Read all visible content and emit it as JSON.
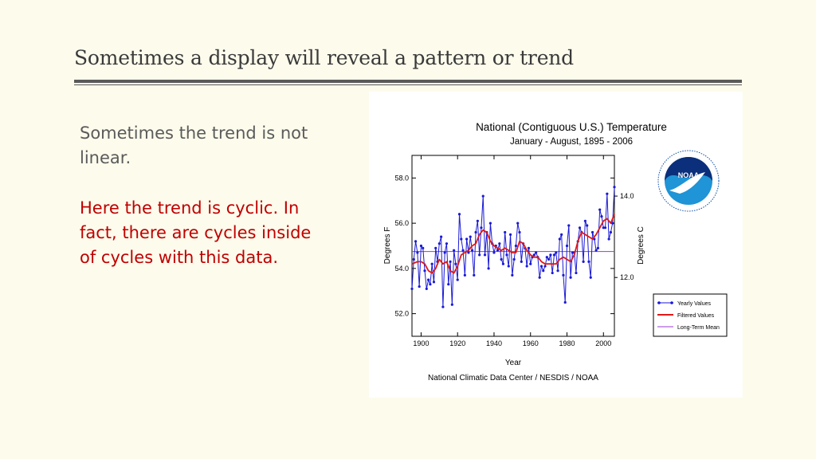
{
  "slide": {
    "title": "Sometimes a display will reveal a pattern or trend",
    "paragraph1": "Sometimes the trend is not linear.",
    "paragraph2": "Here the trend is cyclic. In fact, there are cycles inside of cycles with this data."
  },
  "chart_data": {
    "type": "line",
    "title": "National (Contiguous U.S.) Temperature",
    "subtitle": "January - August, 1895 - 2006",
    "xlabel": "Year",
    "ylabel": "Degrees F",
    "ylabel_right": "Degrees C",
    "source": "National Climatic Data Center / NESDIS / NOAA",
    "logo_text": "NOAA",
    "xlim": [
      1895,
      2006
    ],
    "ylim": [
      51.0,
      59.0
    ],
    "x_ticks": [
      "1900",
      "1920",
      "1940",
      "1960",
      "1980",
      "2000"
    ],
    "y_ticks": [
      "52.0",
      "54.0",
      "56.0",
      "58.0"
    ],
    "y_ticks_right": [
      "12.0",
      "14.0"
    ],
    "grid": false,
    "legend_position": "bottom-right",
    "colors": {
      "yearly": "#1a1ad6",
      "filtered": "#e01818",
      "mean": "#9a3ad6"
    },
    "series": [
      {
        "name": "Yearly Values",
        "x": [
          1895,
          1896,
          1897,
          1898,
          1899,
          1900,
          1901,
          1902,
          1903,
          1904,
          1905,
          1906,
          1907,
          1908,
          1909,
          1910,
          1911,
          1912,
          1913,
          1914,
          1915,
          1916,
          1917,
          1918,
          1919,
          1920,
          1921,
          1922,
          1923,
          1924,
          1925,
          1926,
          1927,
          1928,
          1929,
          1930,
          1931,
          1932,
          1933,
          1934,
          1935,
          1936,
          1937,
          1938,
          1939,
          1940,
          1941,
          1942,
          1943,
          1944,
          1945,
          1946,
          1947,
          1948,
          1949,
          1950,
          1951,
          1952,
          1953,
          1954,
          1955,
          1956,
          1957,
          1958,
          1959,
          1960,
          1961,
          1962,
          1963,
          1964,
          1965,
          1966,
          1967,
          1968,
          1969,
          1970,
          1971,
          1972,
          1973,
          1974,
          1975,
          1976,
          1977,
          1978,
          1979,
          1980,
          1981,
          1982,
          1983,
          1984,
          1985,
          1986,
          1987,
          1988,
          1989,
          1990,
          1991,
          1992,
          1993,
          1994,
          1995,
          1996,
          1997,
          1998,
          1999,
          2000,
          2001,
          2002,
          2003,
          2004,
          2005,
          2006
        ],
        "values": [
          53.1,
          54.4,
          55.2,
          54.7,
          53.2,
          55.0,
          54.9,
          53.9,
          53.1,
          53.5,
          53.3,
          54.2,
          53.4,
          54.9,
          54.3,
          55.1,
          55.4,
          52.3,
          54.7,
          55.1,
          53.3,
          54.3,
          52.4,
          54.8,
          54.2,
          53.5,
          56.4,
          55.3,
          54.8,
          53.7,
          55.3,
          54.7,
          55.4,
          54.8,
          53.7,
          55.6,
          56.1,
          54.6,
          55.8,
          57.2,
          54.6,
          55.6,
          54.0,
          56.0,
          55.1,
          54.7,
          55.0,
          54.8,
          55.1,
          54.4,
          54.2,
          55.6,
          54.6,
          54.1,
          55.5,
          53.7,
          54.4,
          55.0,
          56.0,
          55.6,
          54.3,
          55.1,
          54.9,
          54.1,
          54.9,
          54.2,
          54.5,
          54.6,
          54.7,
          54.5,
          53.6,
          54.1,
          53.9,
          54.1,
          54.5,
          54.4,
          54.6,
          53.8,
          54.6,
          54.7,
          53.9,
          55.3,
          55.5,
          53.7,
          52.5,
          55.0,
          55.9,
          53.6,
          54.7,
          54.7,
          53.8,
          55.2,
          55.8,
          55.6,
          54.3,
          56.1,
          55.9,
          54.3,
          53.6,
          55.6,
          55.3,
          54.8,
          54.9,
          56.6,
          56.3,
          55.8,
          55.8,
          57.3,
          55.3,
          55.6,
          56.0,
          57.6
        ]
      },
      {
        "name": "Filtered Values",
        "x": [
          1895,
          1898,
          1900,
          1902,
          1904,
          1906,
          1908,
          1910,
          1912,
          1914,
          1916,
          1918,
          1920,
          1922,
          1924,
          1926,
          1928,
          1930,
          1932,
          1934,
          1936,
          1938,
          1940,
          1942,
          1944,
          1946,
          1948,
          1950,
          1952,
          1954,
          1956,
          1958,
          1960,
          1962,
          1964,
          1966,
          1968,
          1970,
          1972,
          1974,
          1976,
          1978,
          1980,
          1982,
          1984,
          1986,
          1988,
          1990,
          1992,
          1994,
          1996,
          1998,
          2000,
          2002,
          2004,
          2006
        ],
        "values": [
          54.2,
          54.3,
          54.3,
          54.2,
          53.9,
          53.8,
          54.0,
          54.4,
          54.2,
          54.3,
          53.9,
          53.8,
          54.1,
          54.6,
          54.7,
          54.8,
          55.0,
          55.1,
          55.5,
          55.7,
          55.6,
          55.2,
          55.0,
          54.9,
          54.8,
          54.9,
          54.8,
          54.7,
          54.7,
          55.2,
          55.1,
          54.8,
          54.6,
          54.5,
          54.5,
          54.3,
          54.2,
          54.2,
          54.2,
          54.2,
          54.4,
          54.5,
          54.4,
          54.3,
          54.6,
          55.2,
          55.6,
          55.5,
          55.4,
          55.3,
          55.5,
          55.8,
          56.1,
          56.2,
          56.0,
          56.4
        ]
      },
      {
        "name": "Long-Term Mean",
        "x": [
          1895,
          2006
        ],
        "values": [
          54.75,
          54.75
        ]
      }
    ]
  }
}
